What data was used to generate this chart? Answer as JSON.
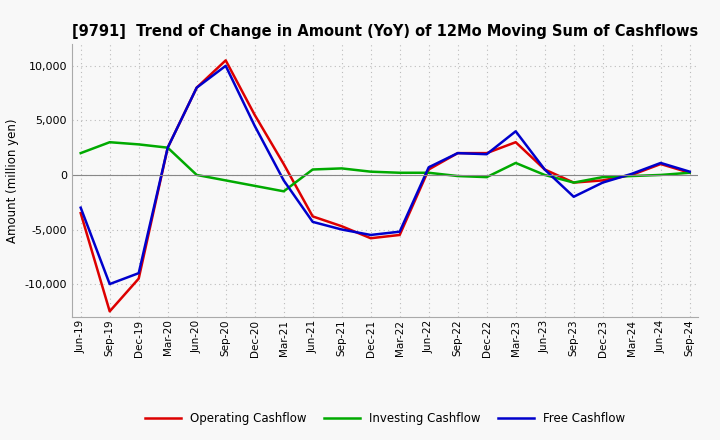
{
  "title": "[9791]  Trend of Change in Amount (YoY) of 12Mo Moving Sum of Cashflows",
  "ylabel": "Amount (million yen)",
  "x_labels": [
    "Jun-19",
    "Sep-19",
    "Dec-19",
    "Mar-20",
    "Jun-20",
    "Sep-20",
    "Dec-20",
    "Mar-21",
    "Jun-21",
    "Sep-21",
    "Dec-21",
    "Mar-22",
    "Jun-22",
    "Sep-22",
    "Dec-22",
    "Mar-23",
    "Jun-23",
    "Sep-23",
    "Dec-23",
    "Mar-24",
    "Jun-24",
    "Sep-24"
  ],
  "operating": [
    -3500,
    -12500,
    -9500,
    2500,
    8000,
    10500,
    5500,
    1000,
    -3800,
    -4700,
    -5800,
    -5500,
    500,
    2000,
    2000,
    3000,
    500,
    -700,
    -500,
    0,
    1000,
    200
  ],
  "investing": [
    2000,
    3000,
    2800,
    2500,
    0,
    -500,
    -1000,
    -1500,
    500,
    600,
    300,
    200,
    200,
    -100,
    -200,
    1100,
    0,
    -700,
    -200,
    -100,
    0,
    200
  ],
  "free": [
    -3000,
    -10000,
    -9000,
    2500,
    8000,
    10000,
    4500,
    -500,
    -4300,
    -5000,
    -5500,
    -5200,
    700,
    2000,
    1900,
    4000,
    500,
    -2000,
    -700,
    100,
    1100,
    300
  ],
  "ylim": [
    -13000,
    12000
  ],
  "yticks": [
    -10000,
    -5000,
    0,
    5000,
    10000
  ],
  "operating_color": "#dd0000",
  "investing_color": "#00aa00",
  "free_color": "#0000cc",
  "background_color": "#f8f8f8",
  "plot_bg_color": "#f0f0f0",
  "grid_color": "#bbbbbb",
  "zero_line_color": "#888888",
  "legend_labels": [
    "Operating Cashflow",
    "Investing Cashflow",
    "Free Cashflow"
  ]
}
